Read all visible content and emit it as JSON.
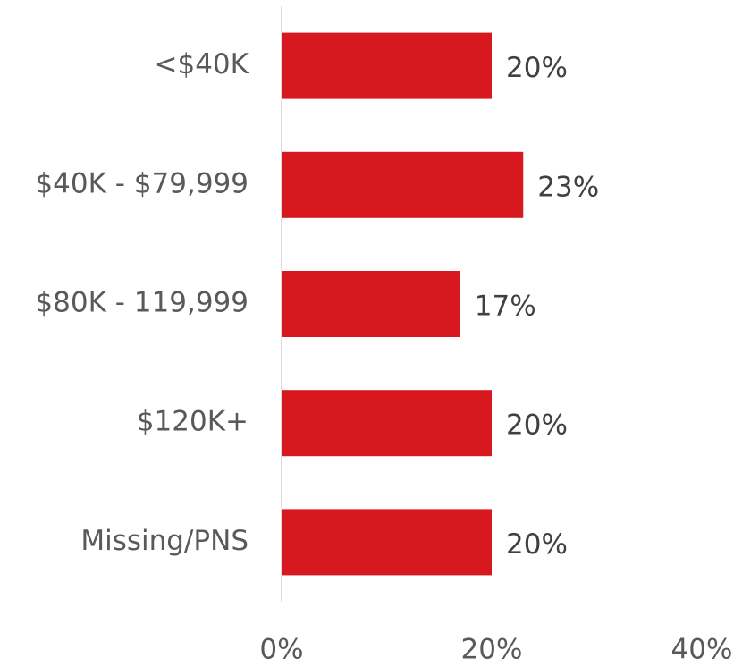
{
  "chart_data": {
    "type": "bar",
    "orientation": "horizontal",
    "categories": [
      "<$40K",
      "$40K - $79,999",
      "$80K - 119,999",
      "$120K+",
      "Missing/PNS"
    ],
    "values": [
      20,
      23,
      17,
      20,
      20
    ],
    "value_labels": [
      "20%",
      "23%",
      "17%",
      "20%",
      "20%"
    ],
    "color": "#d7181f",
    "xlim": [
      0,
      40
    ],
    "xticks": [
      {
        "value": 0,
        "label": "0%"
      },
      {
        "value": 20,
        "label": "20%"
      },
      {
        "value": 40,
        "label": "40%"
      }
    ],
    "grid": false
  }
}
